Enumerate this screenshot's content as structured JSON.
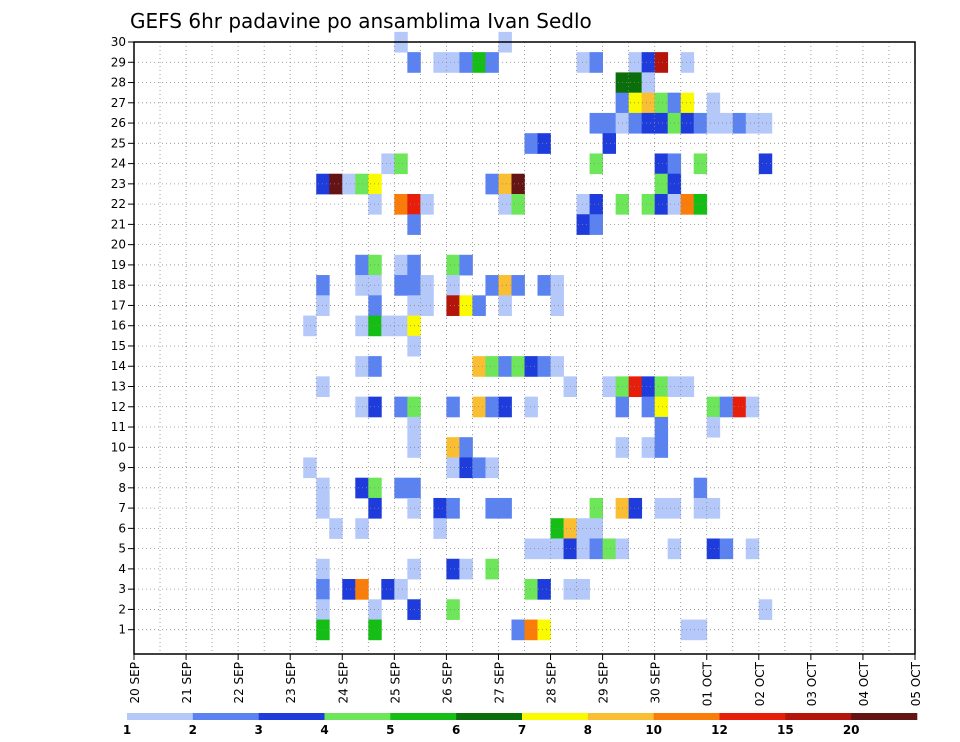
{
  "chart_data": {
    "type": "heatmap",
    "title": "GEFS 6hr padavine po ansamblima Ivan Sedlo",
    "xlabel": "",
    "ylabel": "",
    "x_time_step_hours": 6,
    "x_ticks": [
      "20 SEP",
      "21 SEP",
      "22 SEP",
      "23 SEP",
      "24 SEP",
      "25 SEP",
      "26 SEP",
      "27 SEP",
      "28 SEP",
      "29 SEP",
      "30 SEP",
      "01 OCT",
      "02 OCT",
      "03 OCT",
      "04 OCT",
      "05 OCT"
    ],
    "y_ticks": [
      "1",
      "2",
      "3",
      "4",
      "5",
      "6",
      "7",
      "8",
      "9",
      "10",
      "11",
      "12",
      "13",
      "14",
      "15",
      "16",
      "17",
      "18",
      "19",
      "20",
      "21",
      "22",
      "23",
      "24",
      "25",
      "26",
      "27",
      "28",
      "29",
      "30"
    ],
    "ylim": [
      0,
      30
    ],
    "grid": true,
    "colorbar": {
      "labels": [
        "1",
        "2",
        "3",
        "4",
        "5",
        "6",
        "7",
        "8",
        "10",
        "12",
        "15",
        "20"
      ],
      "colors": [
        "#b4c8fa",
        "#5a82f0",
        "#1e3cdc",
        "#6ee65a",
        "#14be14",
        "#0a6e0a",
        "#fafa00",
        "#fabe32",
        "#fa7d0a",
        "#e61e0a",
        "#b4140a",
        "#641414"
      ]
    },
    "cells_note": "[member, time_step_index (0 = 20 SEP 00Z, 6h steps), colorbar_class 0-11]",
    "cells": [
      [
        30,
        20,
        0
      ],
      [
        30,
        28,
        0
      ],
      [
        29,
        21,
        1
      ],
      [
        29,
        23,
        0
      ],
      [
        29,
        24,
        0
      ],
      [
        29,
        25,
        1
      ],
      [
        29,
        26,
        4
      ],
      [
        29,
        27,
        1
      ],
      [
        29,
        34,
        0
      ],
      [
        29,
        35,
        1
      ],
      [
        29,
        38,
        0
      ],
      [
        29,
        39,
        2
      ],
      [
        29,
        40,
        10
      ],
      [
        29,
        42,
        0
      ],
      [
        28,
        37,
        5
      ],
      [
        28,
        38,
        5
      ],
      [
        28,
        39,
        0
      ],
      [
        27,
        37,
        1
      ],
      [
        27,
        38,
        6
      ],
      [
        27,
        39,
        7
      ],
      [
        27,
        40,
        3
      ],
      [
        27,
        41,
        1
      ],
      [
        27,
        42,
        6
      ],
      [
        27,
        44,
        0
      ],
      [
        26,
        35,
        1
      ],
      [
        26,
        36,
        1
      ],
      [
        26,
        37,
        0
      ],
      [
        26,
        38,
        1
      ],
      [
        26,
        39,
        2
      ],
      [
        26,
        40,
        2
      ],
      [
        26,
        41,
        3
      ],
      [
        26,
        42,
        2
      ],
      [
        26,
        43,
        1
      ],
      [
        26,
        44,
        0
      ],
      [
        26,
        45,
        0
      ],
      [
        26,
        46,
        1
      ],
      [
        26,
        47,
        0
      ],
      [
        26,
        48,
        0
      ],
      [
        25,
        30,
        1
      ],
      [
        25,
        31,
        2
      ],
      [
        25,
        36,
        2
      ],
      [
        24,
        19,
        0
      ],
      [
        24,
        20,
        3
      ],
      [
        24,
        35,
        3
      ],
      [
        24,
        40,
        2
      ],
      [
        24,
        41,
        1
      ],
      [
        24,
        43,
        3
      ],
      [
        24,
        48,
        2
      ],
      [
        23,
        14,
        2
      ],
      [
        23,
        15,
        11
      ],
      [
        23,
        16,
        0
      ],
      [
        23,
        17,
        3
      ],
      [
        23,
        18,
        6
      ],
      [
        23,
        27,
        1
      ],
      [
        23,
        28,
        7
      ],
      [
        23,
        29,
        11
      ],
      [
        23,
        40,
        3
      ],
      [
        23,
        41,
        2
      ],
      [
        22,
        18,
        0
      ],
      [
        22,
        20,
        8
      ],
      [
        22,
        21,
        9
      ],
      [
        22,
        22,
        0
      ],
      [
        22,
        28,
        0
      ],
      [
        22,
        29,
        3
      ],
      [
        22,
        34,
        0
      ],
      [
        22,
        35,
        2
      ],
      [
        22,
        37,
        3
      ],
      [
        22,
        39,
        3
      ],
      [
        22,
        40,
        2
      ],
      [
        22,
        41,
        0
      ],
      [
        22,
        42,
        8
      ],
      [
        22,
        43,
        4
      ],
      [
        21,
        21,
        1
      ],
      [
        21,
        34,
        2
      ],
      [
        21,
        35,
        1
      ],
      [
        19,
        17,
        1
      ],
      [
        19,
        18,
        3
      ],
      [
        19,
        20,
        0
      ],
      [
        19,
        21,
        1
      ],
      [
        19,
        24,
        3
      ],
      [
        19,
        25,
        1
      ],
      [
        18,
        14,
        1
      ],
      [
        18,
        17,
        0
      ],
      [
        18,
        18,
        0
      ],
      [
        18,
        20,
        1
      ],
      [
        18,
        21,
        1
      ],
      [
        18,
        22,
        0
      ],
      [
        18,
        24,
        0
      ],
      [
        18,
        27,
        1
      ],
      [
        18,
        28,
        7
      ],
      [
        18,
        29,
        1
      ],
      [
        18,
        31,
        1
      ],
      [
        18,
        32,
        0
      ],
      [
        17,
        14,
        0
      ],
      [
        17,
        18,
        1
      ],
      [
        17,
        21,
        0
      ],
      [
        17,
        22,
        0
      ],
      [
        17,
        24,
        10
      ],
      [
        17,
        25,
        6
      ],
      [
        17,
        26,
        1
      ],
      [
        17,
        28,
        0
      ],
      [
        17,
        32,
        0
      ],
      [
        16,
        13,
        0
      ],
      [
        16,
        17,
        0
      ],
      [
        16,
        18,
        4
      ],
      [
        16,
        19,
        0
      ],
      [
        16,
        20,
        0
      ],
      [
        16,
        21,
        6
      ],
      [
        15,
        21,
        0
      ],
      [
        14,
        17,
        0
      ],
      [
        14,
        18,
        1
      ],
      [
        14,
        26,
        7
      ],
      [
        14,
        27,
        3
      ],
      [
        14,
        28,
        1
      ],
      [
        14,
        29,
        3
      ],
      [
        14,
        30,
        2
      ],
      [
        14,
        31,
        1
      ],
      [
        14,
        32,
        0
      ],
      [
        13,
        14,
        0
      ],
      [
        13,
        33,
        0
      ],
      [
        13,
        36,
        0
      ],
      [
        13,
        37,
        3
      ],
      [
        13,
        38,
        9
      ],
      [
        13,
        39,
        2
      ],
      [
        13,
        40,
        3
      ],
      [
        13,
        41,
        0
      ],
      [
        13,
        42,
        0
      ],
      [
        12,
        17,
        0
      ],
      [
        12,
        18,
        2
      ],
      [
        12,
        20,
        1
      ],
      [
        12,
        21,
        3
      ],
      [
        12,
        24,
        1
      ],
      [
        12,
        26,
        7
      ],
      [
        12,
        27,
        1
      ],
      [
        12,
        28,
        2
      ],
      [
        12,
        30,
        0
      ],
      [
        12,
        37,
        1
      ],
      [
        12,
        39,
        1
      ],
      [
        12,
        40,
        6
      ],
      [
        12,
        44,
        3
      ],
      [
        12,
        45,
        1
      ],
      [
        12,
        46,
        9
      ],
      [
        12,
        47,
        0
      ],
      [
        11,
        21,
        0
      ],
      [
        11,
        40,
        1
      ],
      [
        11,
        44,
        0
      ],
      [
        10,
        21,
        0
      ],
      [
        10,
        24,
        7
      ],
      [
        10,
        25,
        1
      ],
      [
        10,
        37,
        0
      ],
      [
        10,
        39,
        0
      ],
      [
        10,
        40,
        1
      ],
      [
        9,
        13,
        0
      ],
      [
        9,
        24,
        0
      ],
      [
        9,
        25,
        2
      ],
      [
        9,
        26,
        1
      ],
      [
        9,
        27,
        0
      ],
      [
        8,
        14,
        0
      ],
      [
        8,
        17,
        2
      ],
      [
        8,
        18,
        3
      ],
      [
        8,
        20,
        1
      ],
      [
        8,
        21,
        1
      ],
      [
        8,
        43,
        1
      ],
      [
        7,
        14,
        0
      ],
      [
        7,
        18,
        2
      ],
      [
        7,
        21,
        0
      ],
      [
        7,
        23,
        2
      ],
      [
        7,
        24,
        1
      ],
      [
        7,
        27,
        1
      ],
      [
        7,
        28,
        1
      ],
      [
        7,
        35,
        3
      ],
      [
        7,
        37,
        7
      ],
      [
        7,
        38,
        2
      ],
      [
        7,
        40,
        0
      ],
      [
        7,
        41,
        0
      ],
      [
        7,
        43,
        0
      ],
      [
        7,
        44,
        0
      ],
      [
        6,
        15,
        0
      ],
      [
        6,
        17,
        0
      ],
      [
        6,
        23,
        0
      ],
      [
        6,
        32,
        4
      ],
      [
        6,
        33,
        7
      ],
      [
        6,
        34,
        0
      ],
      [
        6,
        35,
        0
      ],
      [
        5,
        30,
        0
      ],
      [
        5,
        31,
        0
      ],
      [
        5,
        32,
        0
      ],
      [
        5,
        33,
        2
      ],
      [
        5,
        34,
        0
      ],
      [
        5,
        35,
        1
      ],
      [
        5,
        36,
        3
      ],
      [
        5,
        37,
        0
      ],
      [
        5,
        41,
        0
      ],
      [
        5,
        44,
        2
      ],
      [
        5,
        45,
        1
      ],
      [
        5,
        47,
        0
      ],
      [
        4,
        14,
        0
      ],
      [
        4,
        21,
        0
      ],
      [
        4,
        24,
        2
      ],
      [
        4,
        25,
        0
      ],
      [
        4,
        27,
        3
      ],
      [
        3,
        14,
        1
      ],
      [
        3,
        16,
        2
      ],
      [
        3,
        17,
        8
      ],
      [
        3,
        19,
        2
      ],
      [
        3,
        20,
        0
      ],
      [
        3,
        30,
        3
      ],
      [
        3,
        31,
        2
      ],
      [
        3,
        33,
        0
      ],
      [
        3,
        34,
        0
      ],
      [
        2,
        14,
        0
      ],
      [
        2,
        18,
        0
      ],
      [
        2,
        21,
        2
      ],
      [
        2,
        24,
        3
      ],
      [
        2,
        48,
        0
      ],
      [
        1,
        14,
        4
      ],
      [
        1,
        18,
        4
      ],
      [
        1,
        29,
        1
      ],
      [
        1,
        30,
        8
      ],
      [
        1,
        31,
        6
      ],
      [
        1,
        42,
        0
      ],
      [
        1,
        43,
        0
      ]
    ]
  }
}
